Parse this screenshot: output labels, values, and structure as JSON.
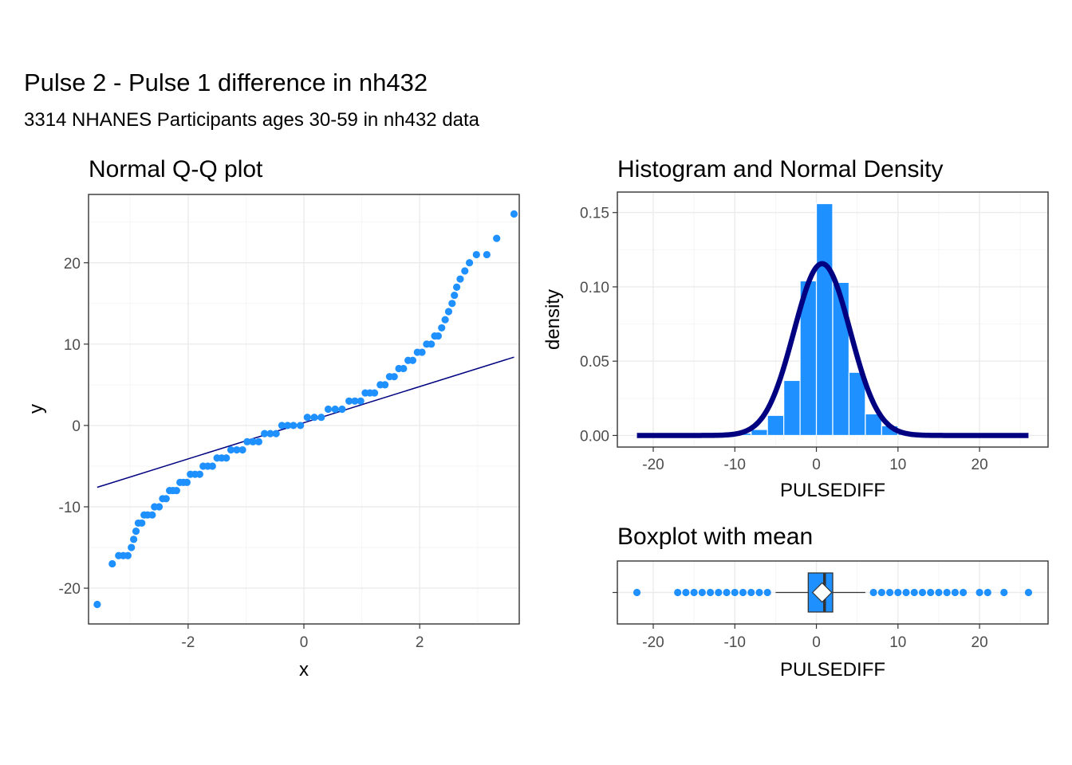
{
  "figure": {
    "title": "Pulse 2 - Pulse 1 difference in nh432",
    "subtitle": "3314 NHANES Participants ages 30-59 in nh432 data"
  },
  "colors": {
    "points": "#1E90FF",
    "bars": "#1E90FF",
    "density_line": "#000080",
    "qq_line": "#000080",
    "grid_major": "#EBEBEB",
    "grid_minor": "#F5F5F5",
    "panel_border": "#333333",
    "tick_text": "#4D4D4D"
  },
  "chart_data": [
    {
      "id": "qq",
      "type": "scatter",
      "title": "Normal Q-Q plot",
      "xlabel": "x",
      "ylabel": "y",
      "xlim": [
        -3.72,
        3.72
      ],
      "ylim": [
        -24.4,
        28.4
      ],
      "xticks": [
        -2,
        0,
        2
      ],
      "xtick_labels": [
        "-2",
        "0",
        "2"
      ],
      "yticks": [
        -20,
        -10,
        0,
        10,
        20
      ],
      "ytick_labels": [
        "-20",
        "-10",
        "0",
        "10",
        "20"
      ],
      "points": [
        [
          -3.57,
          -22
        ],
        [
          -3.31,
          -17
        ],
        [
          -3.2,
          -16
        ],
        [
          -3.12,
          -16
        ],
        [
          -3.04,
          -16
        ],
        [
          -2.98,
          -15
        ],
        [
          -2.94,
          -14
        ],
        [
          -2.9,
          -13
        ],
        [
          -2.86,
          -12
        ],
        [
          -2.8,
          -12
        ],
        [
          -2.76,
          -11
        ],
        [
          -2.7,
          -11
        ],
        [
          -2.62,
          -11
        ],
        [
          -2.58,
          -10
        ],
        [
          -2.5,
          -10
        ],
        [
          -2.44,
          -9
        ],
        [
          -2.38,
          -9
        ],
        [
          -2.32,
          -8
        ],
        [
          -2.26,
          -8
        ],
        [
          -2.2,
          -8
        ],
        [
          -2.14,
          -7
        ],
        [
          -2.08,
          -7
        ],
        [
          -2.02,
          -7
        ],
        [
          -1.96,
          -6
        ],
        [
          -1.88,
          -6
        ],
        [
          -1.8,
          -6
        ],
        [
          -1.74,
          -5
        ],
        [
          -1.66,
          -5
        ],
        [
          -1.58,
          -5
        ],
        [
          -1.5,
          -4
        ],
        [
          -1.42,
          -4
        ],
        [
          -1.34,
          -4
        ],
        [
          -1.26,
          -3
        ],
        [
          -1.16,
          -3
        ],
        [
          -1.06,
          -3
        ],
        [
          -0.98,
          -2
        ],
        [
          -0.88,
          -2
        ],
        [
          -0.78,
          -2
        ],
        [
          -0.68,
          -1
        ],
        [
          -0.58,
          -1
        ],
        [
          -0.48,
          -1
        ],
        [
          -0.38,
          0
        ],
        [
          -0.28,
          0
        ],
        [
          -0.18,
          0
        ],
        [
          -0.06,
          0
        ],
        [
          0.06,
          1
        ],
        [
          0.18,
          1
        ],
        [
          0.3,
          1
        ],
        [
          0.42,
          2
        ],
        [
          0.54,
          2
        ],
        [
          0.66,
          2
        ],
        [
          0.78,
          3
        ],
        [
          0.88,
          3
        ],
        [
          0.98,
          3
        ],
        [
          1.06,
          4
        ],
        [
          1.14,
          4
        ],
        [
          1.22,
          4
        ],
        [
          1.32,
          5
        ],
        [
          1.4,
          5
        ],
        [
          1.48,
          6
        ],
        [
          1.56,
          6
        ],
        [
          1.64,
          7
        ],
        [
          1.72,
          7
        ],
        [
          1.8,
          8
        ],
        [
          1.88,
          8
        ],
        [
          1.96,
          9
        ],
        [
          2.04,
          9
        ],
        [
          2.12,
          10
        ],
        [
          2.2,
          10
        ],
        [
          2.26,
          11
        ],
        [
          2.32,
          11
        ],
        [
          2.38,
          12
        ],
        [
          2.44,
          13
        ],
        [
          2.5,
          14
        ],
        [
          2.56,
          15
        ],
        [
          2.6,
          16
        ],
        [
          2.64,
          17
        ],
        [
          2.7,
          18
        ],
        [
          2.78,
          19
        ],
        [
          2.86,
          20
        ],
        [
          2.98,
          21
        ],
        [
          3.16,
          21
        ],
        [
          3.33,
          23
        ],
        [
          3.63,
          26
        ]
      ],
      "reference_line": [
        [
          -3.57,
          -7.6
        ],
        [
          3.63,
          8.4
        ]
      ]
    },
    {
      "id": "hist",
      "type": "bar",
      "title": "Histogram and Normal Density",
      "xlabel": "PULSEDIFF",
      "ylabel": "density",
      "xlim": [
        -24.4,
        28.4
      ],
      "ylim": [
        -0.0078,
        0.1638
      ],
      "xticks": [
        -20,
        -10,
        0,
        10,
        20
      ],
      "xtick_labels": [
        "-20",
        "-10",
        "0",
        "10",
        "20"
      ],
      "yticks": [
        0,
        0.05,
        0.1,
        0.15
      ],
      "ytick_labels": [
        "0.00",
        "0.05",
        "0.10",
        "0.15"
      ],
      "bin_width": 2,
      "bin_left_edges": [
        -22,
        -20,
        -18,
        -16,
        -14,
        -12,
        -10,
        -8,
        -6,
        -4,
        -2,
        0,
        2,
        4,
        6,
        8,
        10,
        12,
        14,
        16,
        18,
        20,
        22,
        24
      ],
      "values": [
        0.0002,
        0,
        0.0002,
        0.0005,
        0.0005,
        0.0008,
        0.0015,
        0.004,
        0.0135,
        0.037,
        0.104,
        0.156,
        0.103,
        0.0425,
        0.0145,
        0.0065,
        0.0025,
        0.0015,
        0.0012,
        0.0008,
        0.0004,
        0.0003,
        0.0002,
        0.0002
      ],
      "density_curve": {
        "mean": 0.7,
        "sd": 3.45,
        "x_range": [
          -22,
          26
        ]
      }
    },
    {
      "id": "box",
      "type": "box",
      "title": "Boxplot with mean",
      "xlabel": "PULSEDIFF",
      "xlim": [
        -24.4,
        28.4
      ],
      "xticks": [
        -20,
        -10,
        0,
        10,
        20
      ],
      "xtick_labels": [
        "-20",
        "-10",
        "0",
        "10",
        "20"
      ],
      "q1": -1,
      "median": 1,
      "q3": 2,
      "mean": 0.7,
      "whisker_low": -5,
      "whisker_high": 6,
      "outliers": [
        -22,
        -17,
        -16,
        -15,
        -14,
        -13,
        -12,
        -11,
        -10,
        -9,
        -8,
        -7,
        -6,
        7,
        8,
        9,
        10,
        11,
        12,
        13,
        14,
        15,
        16,
        17,
        18,
        20,
        21,
        23,
        26
      ]
    }
  ]
}
